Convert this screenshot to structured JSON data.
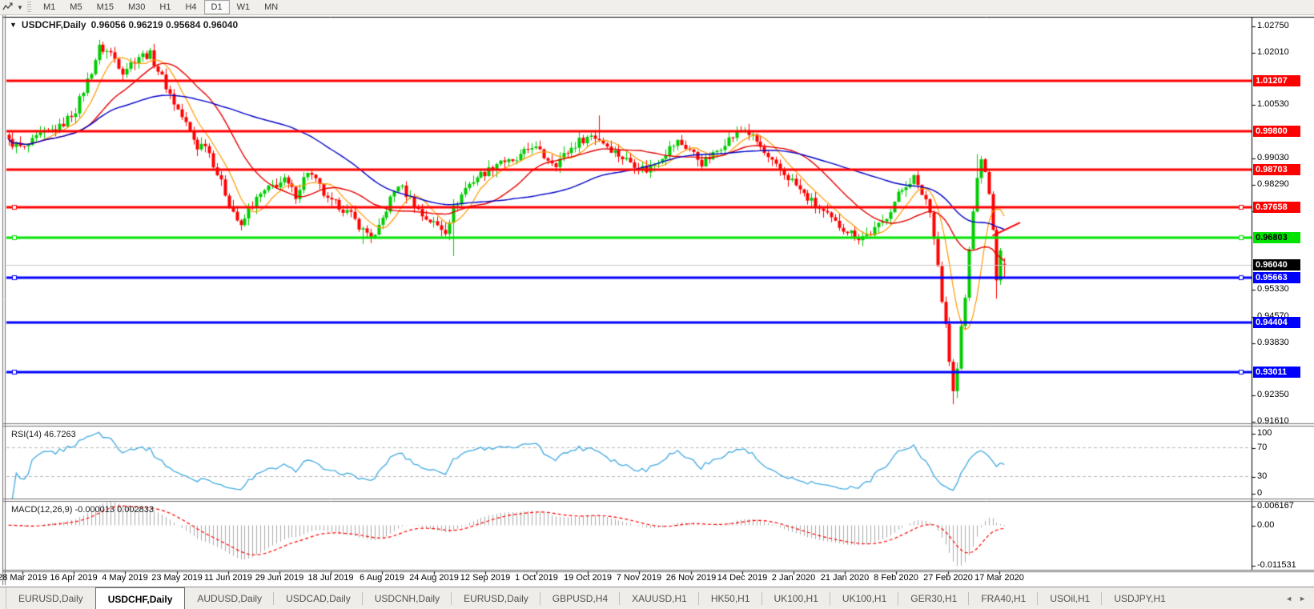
{
  "toolbar": {
    "timeframes": [
      "M1",
      "M5",
      "M15",
      "M30",
      "H1",
      "H4",
      "D1",
      "W1",
      "MN"
    ],
    "active_timeframe": "D1"
  },
  "chart": {
    "title_symbol": "USDCHF,Daily",
    "title_ohlc": "0.96056 0.96219 0.95684 0.96040",
    "current_price_label": "0.96040",
    "price_axis_ticks": [
      "1.02750",
      "1.02010",
      "1.00530",
      "0.99030",
      "0.98290",
      "0.97550",
      "0.95330",
      "0.94570",
      "0.93830",
      "0.92350",
      "0.91610"
    ],
    "date_axis": [
      "28 Mar 2019",
      "16 Apr 2019",
      "4 May 2019",
      "23 May 2019",
      "11 Jun 2019",
      "29 Jun 2019",
      "18 Jul 2019",
      "6 Aug 2019",
      "24 Aug 2019",
      "12 Sep 2019",
      "1 Oct 2019",
      "19 Oct 2019",
      "7 Nov 2019",
      "26 Nov 2019",
      "14 Dec 2019",
      "2 Jan 2020",
      "21 Jan 2020",
      "8 Feb 2020",
      "27 Feb 2020",
      "17 Mar 2020"
    ]
  },
  "rsi_panel": {
    "label": "RSI(14)",
    "value": "46.7263",
    "axis_ticks": [
      "100",
      "70",
      "30",
      "0"
    ]
  },
  "macd_panel": {
    "label": "MACD(12,26,9)",
    "value_main": "-0.000013",
    "value_signal": "0.002833",
    "axis_ticks": [
      "0.006167",
      "0.00",
      "-0.011531"
    ]
  },
  "tabbar": {
    "tabs": [
      "EURUSD,Daily",
      "USDCHF,Daily",
      "AUDUSD,Daily",
      "USDCAD,Daily",
      "USDCNH,Daily",
      "EURUSD,Daily",
      "GBPUSD,H4",
      "XAUUSD,H1",
      "HK50,H1",
      "UK100,H1",
      "UK100,H1",
      "GER30,H1",
      "FRA40,H1",
      "USOil,H1",
      "USDJPY,H1"
    ],
    "active_index": 1,
    "left_arrow": "◄",
    "right_arrow": "►"
  },
  "colors": {
    "candle_up": "#00CC00",
    "candle_down": "#FF0000",
    "ma_fast": "#FF9900",
    "ma_mid": "#E60000",
    "ma_slow": "#0000C8",
    "level_red": "#FF0000",
    "level_green": "#00E400",
    "level_blue": "#0000FF",
    "current_price_line": "#C8C8C8",
    "current_price_label_bg": "#000000",
    "rsi_line": "#42AAE1",
    "macd_histogram": "#ABABAB",
    "macd_signal": "#FF0000"
  },
  "chart_data": {
    "type": "candlestick",
    "symbol": "USDCHF",
    "timeframe": "Daily",
    "bars_count": 254,
    "price_range": [
      0.9161,
      1.0275
    ],
    "y_ticks": [
      1.0275,
      1.0201,
      1.0053,
      0.9903,
      0.9829,
      0.9755,
      0.9533,
      0.9457,
      0.9383,
      0.9235,
      0.9161
    ],
    "ohlc_last": {
      "open": 0.96056,
      "high": 0.96219,
      "low": 0.95684,
      "close": 0.9604
    },
    "current_price": 0.9604,
    "levels": [
      {
        "price": 1.01207,
        "kind": "resistance",
        "color": "#FF0000",
        "selected": false
      },
      {
        "price": 0.998,
        "kind": "resistance",
        "color": "#FF0000",
        "selected": false
      },
      {
        "price": 0.98703,
        "kind": "resistance",
        "color": "#FF0000",
        "selected": false
      },
      {
        "price": 0.97658,
        "kind": "resistance",
        "color": "#FF0000",
        "selected": true
      },
      {
        "price": 0.96803,
        "kind": "pivot",
        "color": "#00E400",
        "selected": true
      },
      {
        "price": 0.95663,
        "kind": "support",
        "color": "#0000FF",
        "selected": true
      },
      {
        "price": 0.94404,
        "kind": "support",
        "color": "#0000FF",
        "selected": false
      },
      {
        "price": 0.93011,
        "kind": "support",
        "color": "#0000FF",
        "selected": true
      }
    ],
    "close_anchors": [
      [
        0,
        0.995
      ],
      [
        4,
        0.993
      ],
      [
        8,
        0.9968
      ],
      [
        13,
        0.999
      ],
      [
        17,
        1.004
      ],
      [
        21,
        1.015
      ],
      [
        23,
        1.0215
      ],
      [
        26,
        1.02
      ],
      [
        29,
        1.015
      ],
      [
        33,
        1.0192
      ],
      [
        36,
        1.0196
      ],
      [
        39,
        1.013
      ],
      [
        42,
        1.006
      ],
      [
        45,
        1.0
      ],
      [
        48,
        0.9935
      ],
      [
        50,
        0.9948
      ],
      [
        53,
        0.986
      ],
      [
        56,
        0.9778
      ],
      [
        59,
        0.9706
      ],
      [
        61,
        0.976
      ],
      [
        64,
        0.98
      ],
      [
        67,
        0.9825
      ],
      [
        70,
        0.984
      ],
      [
        73,
        0.98
      ],
      [
        76,
        0.9868
      ],
      [
        79,
        0.9822
      ],
      [
        81,
        0.9782
      ],
      [
        84,
        0.977
      ],
      [
        87,
        0.9742
      ],
      [
        90,
        0.97
      ],
      [
        93,
        0.9682
      ],
      [
        94,
        0.9705
      ],
      [
        97,
        0.9788
      ],
      [
        99,
        0.983
      ],
      [
        102,
        0.979
      ],
      [
        105,
        0.9742
      ],
      [
        108,
        0.972
      ],
      [
        111,
        0.97
      ],
      [
        113,
        0.9762
      ],
      [
        116,
        0.982
      ],
      [
        119,
        0.9852
      ],
      [
        122,
        0.987
      ],
      [
        125,
        0.99
      ],
      [
        128,
        0.9888
      ],
      [
        131,
        0.9918
      ],
      [
        133,
        0.994
      ],
      [
        136,
        0.9908
      ],
      [
        139,
        0.989
      ],
      [
        142,
        0.9922
      ],
      [
        145,
        0.9952
      ],
      [
        148,
        0.9968
      ],
      [
        150,
        0.9958
      ],
      [
        153,
        0.993
      ],
      [
        156,
        0.9905
      ],
      [
        159,
        0.9888
      ],
      [
        162,
        0.987
      ],
      [
        165,
        0.99
      ],
      [
        168,
        0.9932
      ],
      [
        170,
        0.995
      ],
      [
        173,
        0.9928
      ],
      [
        176,
        0.989
      ],
      [
        179,
        0.9912
      ],
      [
        182,
        0.995
      ],
      [
        185,
        0.9972
      ],
      [
        187,
        0.9985
      ],
      [
        190,
        0.995
      ],
      [
        193,
        0.99
      ],
      [
        196,
        0.9868
      ],
      [
        199,
        0.984
      ],
      [
        202,
        0.98
      ],
      [
        205,
        0.9772
      ],
      [
        207,
        0.975
      ],
      [
        210,
        0.972
      ],
      [
        213,
        0.97
      ],
      [
        216,
        0.968
      ],
      [
        219,
        0.9692
      ],
      [
        222,
        0.9722
      ],
      [
        224,
        0.9762
      ],
      [
        226,
        0.98
      ],
      [
        228,
        0.983
      ],
      [
        230,
        0.985
      ],
      [
        231,
        0.982
      ],
      [
        233,
        0.9788
      ],
      [
        234,
        0.975
      ],
      [
        235,
        0.968
      ],
      [
        236,
        0.96
      ],
      [
        237,
        0.95
      ],
      [
        238,
        0.9435
      ],
      [
        239,
        0.933
      ],
      [
        240,
        0.9245
      ],
      [
        241,
        0.931
      ],
      [
        242,
        0.943
      ],
      [
        243,
        0.951
      ],
      [
        244,
        0.965
      ],
      [
        245,
        0.975
      ],
      [
        246,
        0.985
      ],
      [
        247,
        0.9898
      ],
      [
        248,
        0.9868
      ],
      [
        249,
        0.98
      ],
      [
        250,
        0.97
      ],
      [
        251,
        0.956
      ],
      [
        252,
        0.964
      ],
      [
        253,
        0.9604
      ]
    ],
    "extremes": [
      {
        "bar": 23,
        "high": 1.0237
      },
      {
        "bar": 90,
        "low": 0.9662
      },
      {
        "bar": 113,
        "low": 0.9628
      },
      {
        "bar": 150,
        "high": 1.0024
      },
      {
        "bar": 240,
        "low": 0.921
      },
      {
        "bar": 246,
        "high": 0.9915
      },
      {
        "bar": 251,
        "low": 0.9508
      }
    ],
    "moving_averages": [
      {
        "name": "fast",
        "period": 8,
        "color": "#FF9900"
      },
      {
        "name": "mid",
        "period": 21,
        "color": "#E60000"
      },
      {
        "name": "slow",
        "period": 55,
        "color": "#0000C8"
      }
    ],
    "trendline": {
      "from_bar": 250,
      "from_price": 0.9685,
      "to_bar": 257,
      "to_price": 0.9722,
      "color": "#FF0000"
    },
    "indicators": [
      {
        "name": "RSI",
        "period": 14,
        "last": 46.7263,
        "levels": [
          70,
          30
        ],
        "range": [
          0,
          100
        ]
      },
      {
        "name": "MACD",
        "fast": 12,
        "slow": 26,
        "signal": 9,
        "last_main": -1.3e-05,
        "last_signal": 0.002833,
        "range": [
          -0.011531,
          0.006167
        ]
      }
    ]
  }
}
